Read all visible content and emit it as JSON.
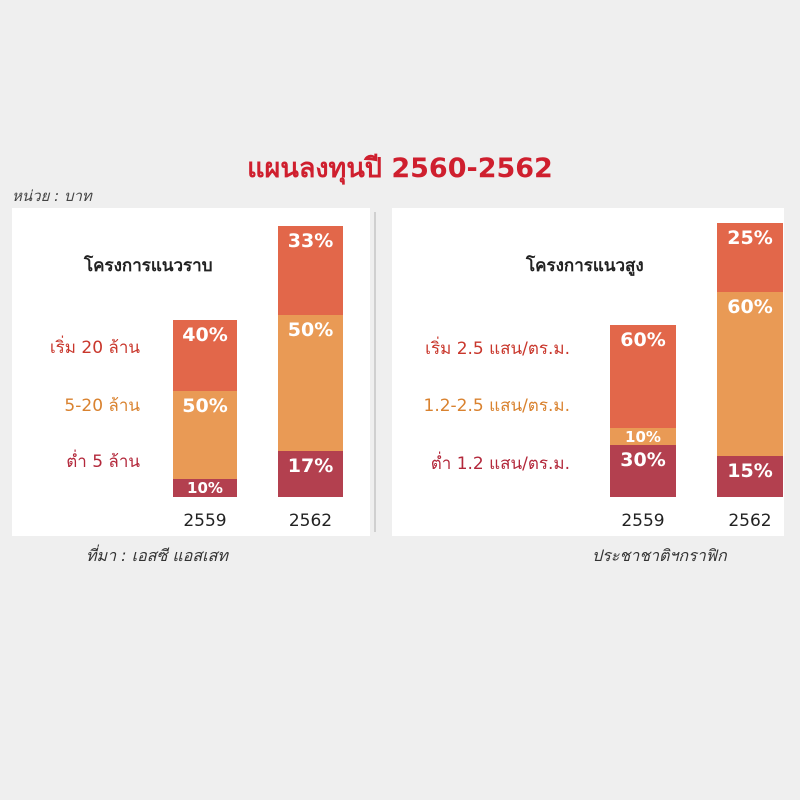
{
  "title": "แผนลงทุนปี 2560-2562",
  "unit": "หน่วย : บาท",
  "source": "ที่มา : เอสซี แอสเสท",
  "credit": "ประชาชาติฯกราฟิก",
  "colors": {
    "top": "#e2674a",
    "middle": "#e99a55",
    "bottom": "#b3404f",
    "label_top": "#c9372c",
    "label_middle": "#d9822f",
    "label_bottom": "#b3283b"
  },
  "chart_data": [
    {
      "type": "bar",
      "stacked": true,
      "title": "โครงการแนวราบ",
      "categories": [
        "2559",
        "2562"
      ],
      "series": [
        {
          "name": "ต่ำ 5 ล้าน",
          "values": [
            10,
            17
          ],
          "labels": [
            "10%",
            "17%"
          ]
        },
        {
          "name": "5-20 ล้าน",
          "values": [
            50,
            50
          ],
          "labels": [
            "50%",
            "50%"
          ]
        },
        {
          "name": "เริ่ม 20 ล้าน",
          "values": [
            40,
            33
          ],
          "labels": [
            "40%",
            "33%"
          ]
        }
      ]
    },
    {
      "type": "bar",
      "stacked": true,
      "title": "โครงการแนวสูง",
      "categories": [
        "2559",
        "2562"
      ],
      "series": [
        {
          "name": "ต่ำ 1.2 แสน/ตร.ม.",
          "values": [
            30,
            15
          ],
          "labels": [
            "30%",
            "15%"
          ]
        },
        {
          "name": "1.2-2.5 แสน/ตร.ม.",
          "values": [
            10,
            60
          ],
          "labels": [
            "10%",
            "60%"
          ]
        },
        {
          "name": "เริ่ม 2.5 แสน/ตร.ม.",
          "values": [
            60,
            25
          ],
          "labels": [
            "60%",
            "25%"
          ]
        }
      ]
    }
  ]
}
